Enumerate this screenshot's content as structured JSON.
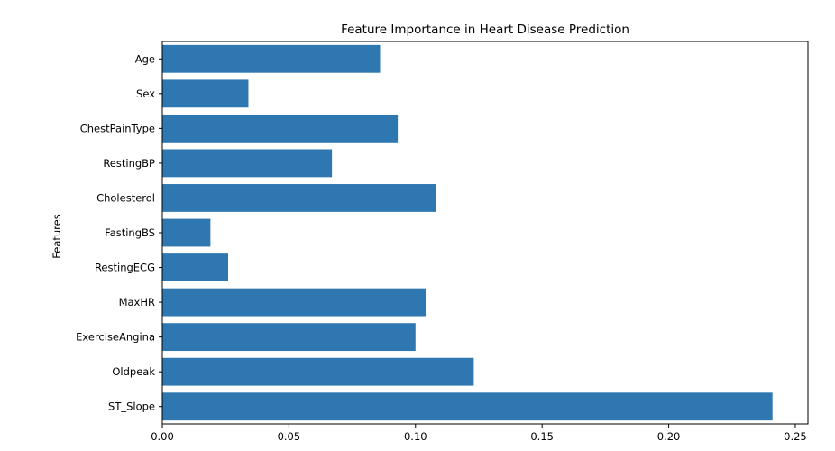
{
  "chart_data": {
    "type": "bar",
    "orientation": "horizontal",
    "title": "Feature Importance in Heart Disease Prediction",
    "xlabel": "",
    "ylabel": "Features",
    "categories": [
      "Age",
      "Sex",
      "ChestPainType",
      "RestingBP",
      "Cholesterol",
      "FastingBS",
      "RestingECG",
      "MaxHR",
      "ExerciseAngina",
      "Oldpeak",
      "ST_Slope"
    ],
    "values": [
      0.086,
      0.034,
      0.093,
      0.067,
      0.108,
      0.019,
      0.026,
      0.104,
      0.1,
      0.123,
      0.241
    ],
    "xlim": [
      0.0,
      0.255
    ],
    "xticks": [
      0.0,
      0.05,
      0.1,
      0.15,
      0.2,
      0.25
    ],
    "xtick_labels": [
      "0.00",
      "0.05",
      "0.10",
      "0.15",
      "0.20",
      "0.25"
    ],
    "grid": false,
    "bar_color": "#2e77b0"
  }
}
